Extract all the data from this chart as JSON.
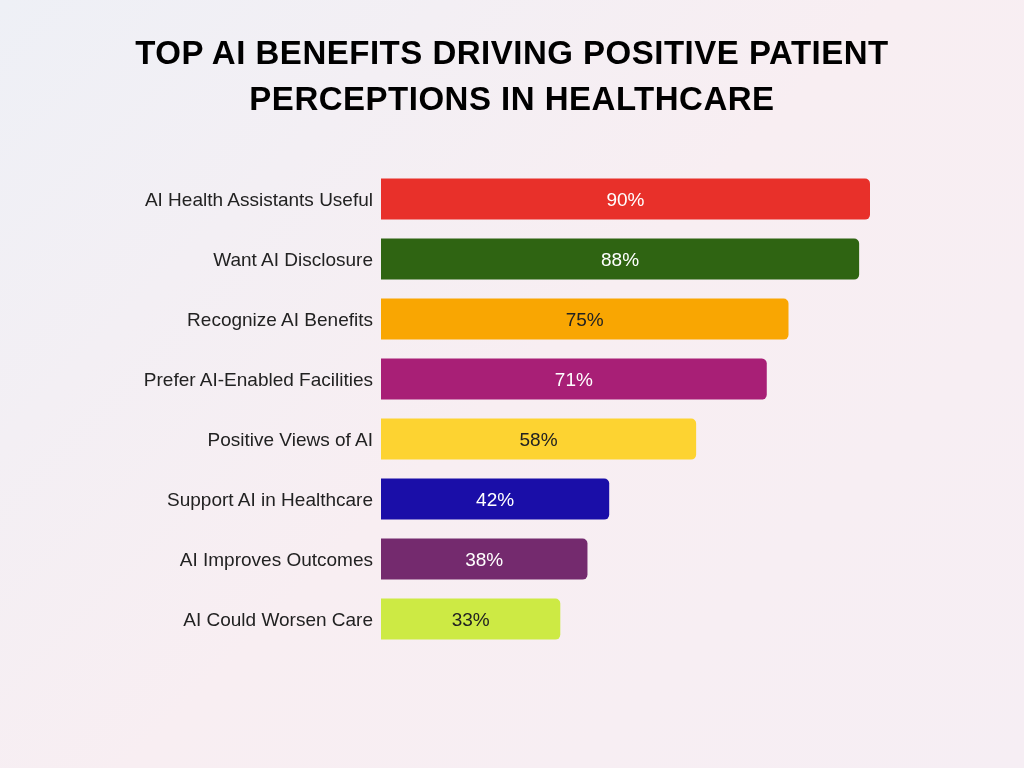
{
  "chart_data": {
    "type": "bar",
    "orientation": "horizontal",
    "title": "TOP AI BENEFITS DRIVING POSITIVE PATIENT PERCEPTIONS IN HEALTHCARE",
    "categories": [
      "AI Health Assistants Useful",
      "Want AI Disclosure",
      "Recognize AI Benefits",
      "Prefer AI-Enabled Facilities",
      "Positive Views of AI",
      "Support AI in Healthcare",
      "AI Improves Outcomes",
      "AI Could Worsen Care"
    ],
    "values": [
      90,
      88,
      75,
      71,
      58,
      42,
      38,
      33
    ],
    "colors": [
      "#e8302a",
      "#2f6412",
      "#f9a602",
      "#a81f76",
      "#fdd331",
      "#1a0ea8",
      "#742a6e",
      "#cdea44"
    ],
    "value_labels": [
      "90%",
      "88%",
      "75%",
      "71%",
      "58%",
      "42%",
      "38%",
      "33%"
    ],
    "grid": false,
    "legend": false
  }
}
